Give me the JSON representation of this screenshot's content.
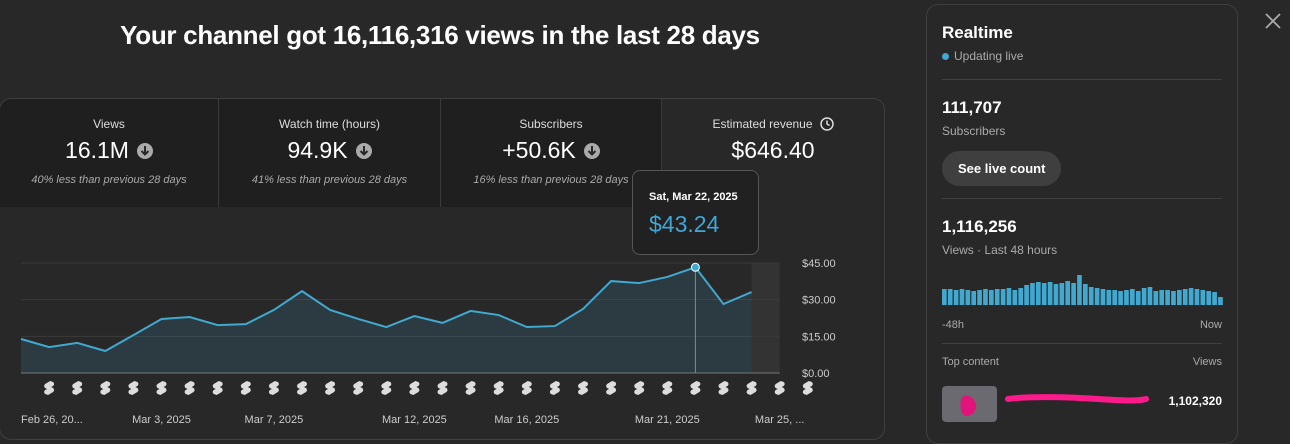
{
  "header": {
    "title": "Your channel got 16,116,316 views in the last 28 days"
  },
  "metrics": [
    {
      "label": "Views",
      "value": "16.1M",
      "note": "40% less than previous 28 days"
    },
    {
      "label": "Watch time (hours)",
      "value": "94.9K",
      "note": "41% less than previous 28 days"
    },
    {
      "label": "Subscribers",
      "value": "+50.6K",
      "note": "16% less than previous 28 days"
    },
    {
      "label": "Estimated revenue",
      "value": "$646.40"
    }
  ],
  "tooltip": {
    "date": "Sat, Mar 22, 2025",
    "value": "$43.24"
  },
  "chart_data": {
    "type": "line",
    "categories": [
      "Feb 26, 20...",
      null,
      null,
      null,
      null,
      "Mar 3, 2025",
      null,
      null,
      null,
      "Mar 7, 2025",
      null,
      null,
      null,
      null,
      "Mar 12, 2025",
      null,
      null,
      null,
      "Mar 16, 2025",
      null,
      null,
      null,
      null,
      "Mar 21, 2025",
      null,
      null,
      null,
      "Mar 25, ..."
    ],
    "values": [
      13.9,
      10.6,
      12.3,
      9.0,
      15.5,
      22.1,
      22.9,
      19.6,
      20.0,
      25.8,
      33.5,
      25.8,
      22.1,
      18.8,
      23.3,
      20.5,
      25.4,
      23.7,
      18.8,
      19.2,
      26.2,
      37.6,
      36.8,
      39.3,
      43.24,
      28.2,
      33.1,
      null
    ],
    "color": "#41a8cf",
    "selected_index": 24,
    "ylim": [
      0,
      45
    ],
    "yticks": [
      {
        "value": 0,
        "label": "$0.00"
      },
      {
        "value": 15,
        "label": "$15.00"
      },
      {
        "value": 30,
        "label": "$30.00"
      },
      {
        "value": 45,
        "label": "$45.00"
      }
    ],
    "grid": true
  },
  "realtime": {
    "title": "Realtime",
    "status": "Updating live",
    "subscribers": "111,707",
    "subscribers_label": "Subscribers",
    "button": "See live count",
    "views": "1,116,256",
    "views_label": "Views · Last 48 hours",
    "bars": {
      "values": [
        16,
        16,
        15,
        16,
        15,
        14,
        15,
        16,
        15,
        16,
        16,
        17,
        15,
        17,
        20,
        22,
        23,
        22,
        23,
        21,
        22,
        24,
        22,
        30,
        21,
        18,
        17,
        16,
        15,
        15,
        14,
        15,
        16,
        14,
        17,
        18,
        14,
        15,
        15,
        14,
        15,
        16,
        17,
        16,
        15,
        14,
        13,
        8
      ],
      "color": "#41a8cf",
      "start_label": "-48h",
      "end_label": "Now"
    },
    "top_content": {
      "title": "Top content",
      "column": "Views",
      "items": [
        {
          "views": "1,102,320"
        }
      ]
    }
  }
}
